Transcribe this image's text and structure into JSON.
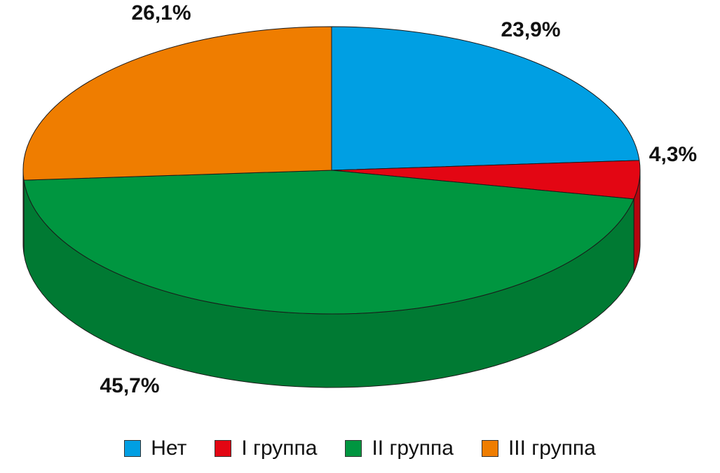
{
  "chart_data": {
    "type": "pie",
    "style": "3d",
    "categories": [
      "Нет",
      "I группа",
      "II группа",
      "III группа"
    ],
    "values": [
      23.9,
      4.3,
      45.7,
      26.1
    ],
    "labels": [
      "23,9%",
      "4,3%",
      "45,7%",
      "26,1%"
    ],
    "colors": [
      "#009fe3",
      "#e30613",
      "#009640",
      "#ef7d00"
    ],
    "side_colors": [
      "#0083bb",
      "#b5050f",
      "#007a33",
      "#c66700"
    ],
    "legend_position": "bottom",
    "title": ""
  }
}
